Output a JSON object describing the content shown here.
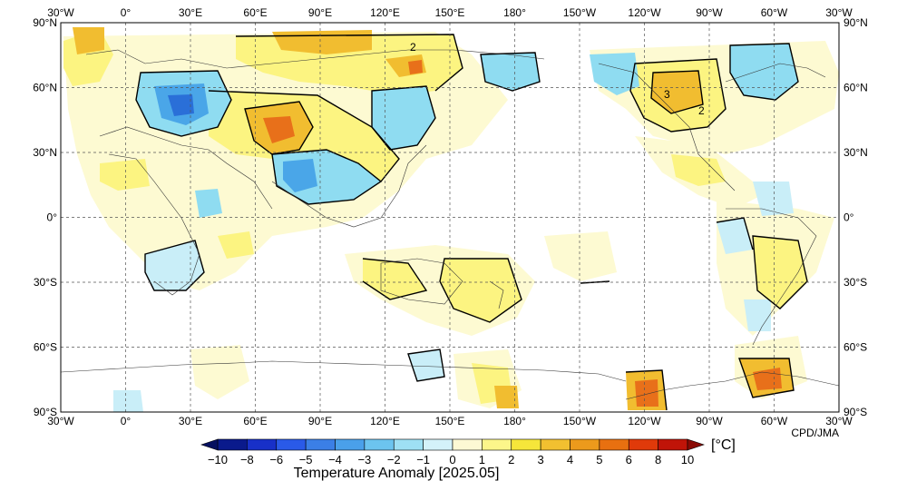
{
  "map": {
    "lon_labels_top": [
      "30°W",
      "0°",
      "30°E",
      "60°E",
      "90°E",
      "120°E",
      "150°E",
      "180°",
      "150°W",
      "120°W",
      "90°W",
      "60°W",
      "30°W"
    ],
    "lon_labels_bottom": [
      "30°W",
      "0°",
      "30°E",
      "60°E",
      "90°E",
      "120°E",
      "150°E",
      "180°",
      "150°W",
      "120°W",
      "90°W",
      "60°W",
      "30°W"
    ],
    "lat_labels": [
      "90°N",
      "60°N",
      "30°N",
      "0°",
      "30°S",
      "60°S",
      "90°S"
    ],
    "credit": "CPD/JMA",
    "contour_labels": [
      "2",
      "3",
      "2"
    ]
  },
  "colorbar": {
    "unit": "[°C]",
    "title": "Temperature Anomaly [2025.05]",
    "tick_labels": [
      "−10",
      "−8",
      "−6",
      "−5",
      "−4",
      "−3",
      "−2",
      "−1",
      "0",
      "1",
      "2",
      "3",
      "4",
      "5",
      "6",
      "8",
      "10"
    ],
    "colors": [
      "#0a1a8c",
      "#1830c8",
      "#2a5ae8",
      "#3b7fe6",
      "#4aa0ea",
      "#6cc4ef",
      "#9ee0f4",
      "#d4f2fa",
      "#fdf9d4",
      "#fcf68a",
      "#f6e63a",
      "#f2c030",
      "#ec9a1c",
      "#e87010",
      "#e03a0a",
      "#c01408"
    ]
  }
}
